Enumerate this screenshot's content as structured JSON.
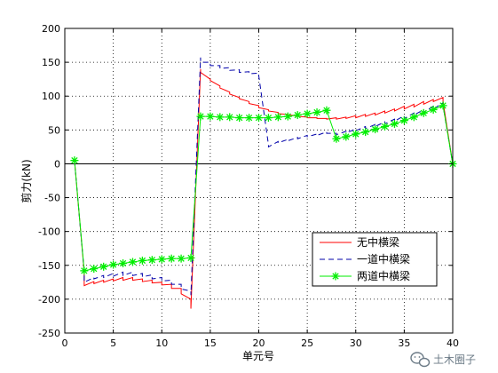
{
  "chart_data": {
    "type": "line",
    "xlabel": "单元号",
    "ylabel": "剪力(kN)",
    "xlim": [
      0,
      40
    ],
    "ylim": [
      -250,
      200
    ],
    "xticks": [
      0,
      5,
      10,
      15,
      20,
      25,
      30,
      35,
      40
    ],
    "yticks": [
      -250,
      -200,
      -150,
      -100,
      -50,
      0,
      50,
      100,
      150,
      200
    ],
    "grid": true,
    "zero_line": true,
    "legend_position": "lower-right",
    "series": [
      {
        "name": "无中横梁",
        "color": "#ff0000",
        "style": "solid",
        "marker": "none",
        "points": [
          [
            1,
            5
          ],
          [
            2,
            -160
          ],
          [
            2,
            -180
          ],
          [
            3,
            -174
          ],
          [
            3,
            -177
          ],
          [
            4,
            -172
          ],
          [
            4,
            -175
          ],
          [
            5,
            -170
          ],
          [
            5,
            -173
          ],
          [
            6,
            -168
          ],
          [
            6,
            -172
          ],
          [
            7,
            -168
          ],
          [
            7,
            -172
          ],
          [
            8,
            -170
          ],
          [
            8,
            -174
          ],
          [
            9,
            -172
          ],
          [
            9,
            -176
          ],
          [
            10,
            -175
          ],
          [
            10,
            -179
          ],
          [
            11,
            -178
          ],
          [
            11,
            -184
          ],
          [
            12,
            -184
          ],
          [
            12,
            -192
          ],
          [
            13,
            -200
          ],
          [
            13,
            -214
          ],
          [
            14,
            140
          ],
          [
            14,
            135
          ],
          [
            15,
            125
          ],
          [
            15,
            123
          ],
          [
            16,
            115
          ],
          [
            16,
            112
          ],
          [
            17,
            106
          ],
          [
            17,
            103
          ],
          [
            18,
            98
          ],
          [
            18,
            96
          ],
          [
            19,
            92
          ],
          [
            19,
            89
          ],
          [
            20,
            86
          ],
          [
            20,
            83
          ],
          [
            21,
            80
          ],
          [
            21,
            78
          ],
          [
            22,
            76
          ],
          [
            22,
            74
          ],
          [
            23,
            73
          ],
          [
            23,
            72
          ],
          [
            24,
            71
          ],
          [
            24,
            70
          ],
          [
            25,
            69
          ],
          [
            25,
            68
          ],
          [
            26,
            68
          ],
          [
            26,
            67
          ],
          [
            27,
            67
          ],
          [
            27,
            66
          ],
          [
            28,
            68
          ],
          [
            28,
            66
          ],
          [
            29,
            69
          ],
          [
            29,
            67
          ],
          [
            30,
            71
          ],
          [
            30,
            68
          ],
          [
            31,
            73
          ],
          [
            31,
            70
          ],
          [
            32,
            75
          ],
          [
            32,
            72
          ],
          [
            33,
            78
          ],
          [
            33,
            75
          ],
          [
            34,
            81
          ],
          [
            34,
            78
          ],
          [
            35,
            85
          ],
          [
            35,
            81
          ],
          [
            36,
            88
          ],
          [
            36,
            84
          ],
          [
            37,
            92
          ],
          [
            37,
            88
          ],
          [
            38,
            95
          ],
          [
            38,
            92
          ],
          [
            39,
            98
          ],
          [
            39,
            92
          ],
          [
            40,
            0
          ]
        ]
      },
      {
        "name": "一道中横梁",
        "color": "#0000aa",
        "style": "dashed",
        "marker": "none",
        "points": [
          [
            1,
            5
          ],
          [
            2,
            -160
          ],
          [
            2,
            -175
          ],
          [
            3,
            -168
          ],
          [
            3,
            -170
          ],
          [
            4,
            -165
          ],
          [
            4,
            -168
          ],
          [
            5,
            -162
          ],
          [
            5,
            -166
          ],
          [
            6,
            -160
          ],
          [
            6,
            -165
          ],
          [
            7,
            -160
          ],
          [
            7,
            -165
          ],
          [
            8,
            -162
          ],
          [
            8,
            -167
          ],
          [
            9,
            -164
          ],
          [
            9,
            -170
          ],
          [
            10,
            -168
          ],
          [
            10,
            -173
          ],
          [
            11,
            -172
          ],
          [
            11,
            -178
          ],
          [
            12,
            -178
          ],
          [
            12,
            -185
          ],
          [
            13,
            -188
          ],
          [
            13,
            -194
          ],
          [
            14,
            157
          ],
          [
            14,
            150
          ],
          [
            15,
            150
          ],
          [
            15,
            145
          ],
          [
            16,
            145
          ],
          [
            16,
            141
          ],
          [
            17,
            142
          ],
          [
            17,
            138
          ],
          [
            18,
            139
          ],
          [
            18,
            135
          ],
          [
            19,
            136
          ],
          [
            19,
            133
          ],
          [
            20,
            134
          ],
          [
            20,
            130
          ],
          [
            21,
            28
          ],
          [
            21,
            25
          ],
          [
            22,
            33
          ],
          [
            22,
            31
          ],
          [
            23,
            36
          ],
          [
            23,
            34
          ],
          [
            24,
            39
          ],
          [
            24,
            37
          ],
          [
            25,
            42
          ],
          [
            25,
            40
          ],
          [
            26,
            44
          ],
          [
            26,
            42
          ],
          [
            27,
            47
          ],
          [
            27,
            45
          ],
          [
            28,
            45
          ],
          [
            28,
            43
          ],
          [
            29,
            48
          ],
          [
            29,
            46
          ],
          [
            30,
            51
          ],
          [
            30,
            49
          ],
          [
            31,
            55
          ],
          [
            31,
            52
          ],
          [
            32,
            58
          ],
          [
            32,
            55
          ],
          [
            33,
            62
          ],
          [
            33,
            59
          ],
          [
            34,
            66
          ],
          [
            34,
            63
          ],
          [
            35,
            71
          ],
          [
            35,
            67
          ],
          [
            36,
            75
          ],
          [
            36,
            72
          ],
          [
            37,
            80
          ],
          [
            37,
            76
          ],
          [
            38,
            85
          ],
          [
            38,
            81
          ],
          [
            39,
            90
          ],
          [
            39,
            86
          ],
          [
            40,
            0
          ]
        ]
      },
      {
        "name": "两道中横梁",
        "color": "#00ee00",
        "style": "solid",
        "marker": "star",
        "points": [
          [
            1,
            5
          ],
          [
            2,
            -158
          ],
          [
            3,
            -155
          ],
          [
            4,
            -152
          ],
          [
            5,
            -149
          ],
          [
            6,
            -147
          ],
          [
            7,
            -145
          ],
          [
            8,
            -143
          ],
          [
            9,
            -142
          ],
          [
            10,
            -141
          ],
          [
            11,
            -140
          ],
          [
            12,
            -140
          ],
          [
            13,
            -139
          ],
          [
            14,
            70
          ],
          [
            15,
            70
          ],
          [
            16,
            69
          ],
          [
            17,
            69
          ],
          [
            18,
            68
          ],
          [
            19,
            68
          ],
          [
            20,
            68
          ],
          [
            21,
            68
          ],
          [
            22,
            69
          ],
          [
            23,
            70
          ],
          [
            24,
            72
          ],
          [
            25,
            74
          ],
          [
            26,
            76
          ],
          [
            27,
            79
          ],
          [
            28,
            37
          ],
          [
            29,
            40
          ],
          [
            30,
            44
          ],
          [
            31,
            47
          ],
          [
            32,
            51
          ],
          [
            33,
            55
          ],
          [
            34,
            59
          ],
          [
            35,
            64
          ],
          [
            36,
            69
          ],
          [
            37,
            75
          ],
          [
            38,
            80
          ],
          [
            39,
            86
          ],
          [
            40,
            0
          ]
        ]
      }
    ]
  },
  "watermark": {
    "icon": "wechat-icon",
    "text": "土木圈子"
  }
}
